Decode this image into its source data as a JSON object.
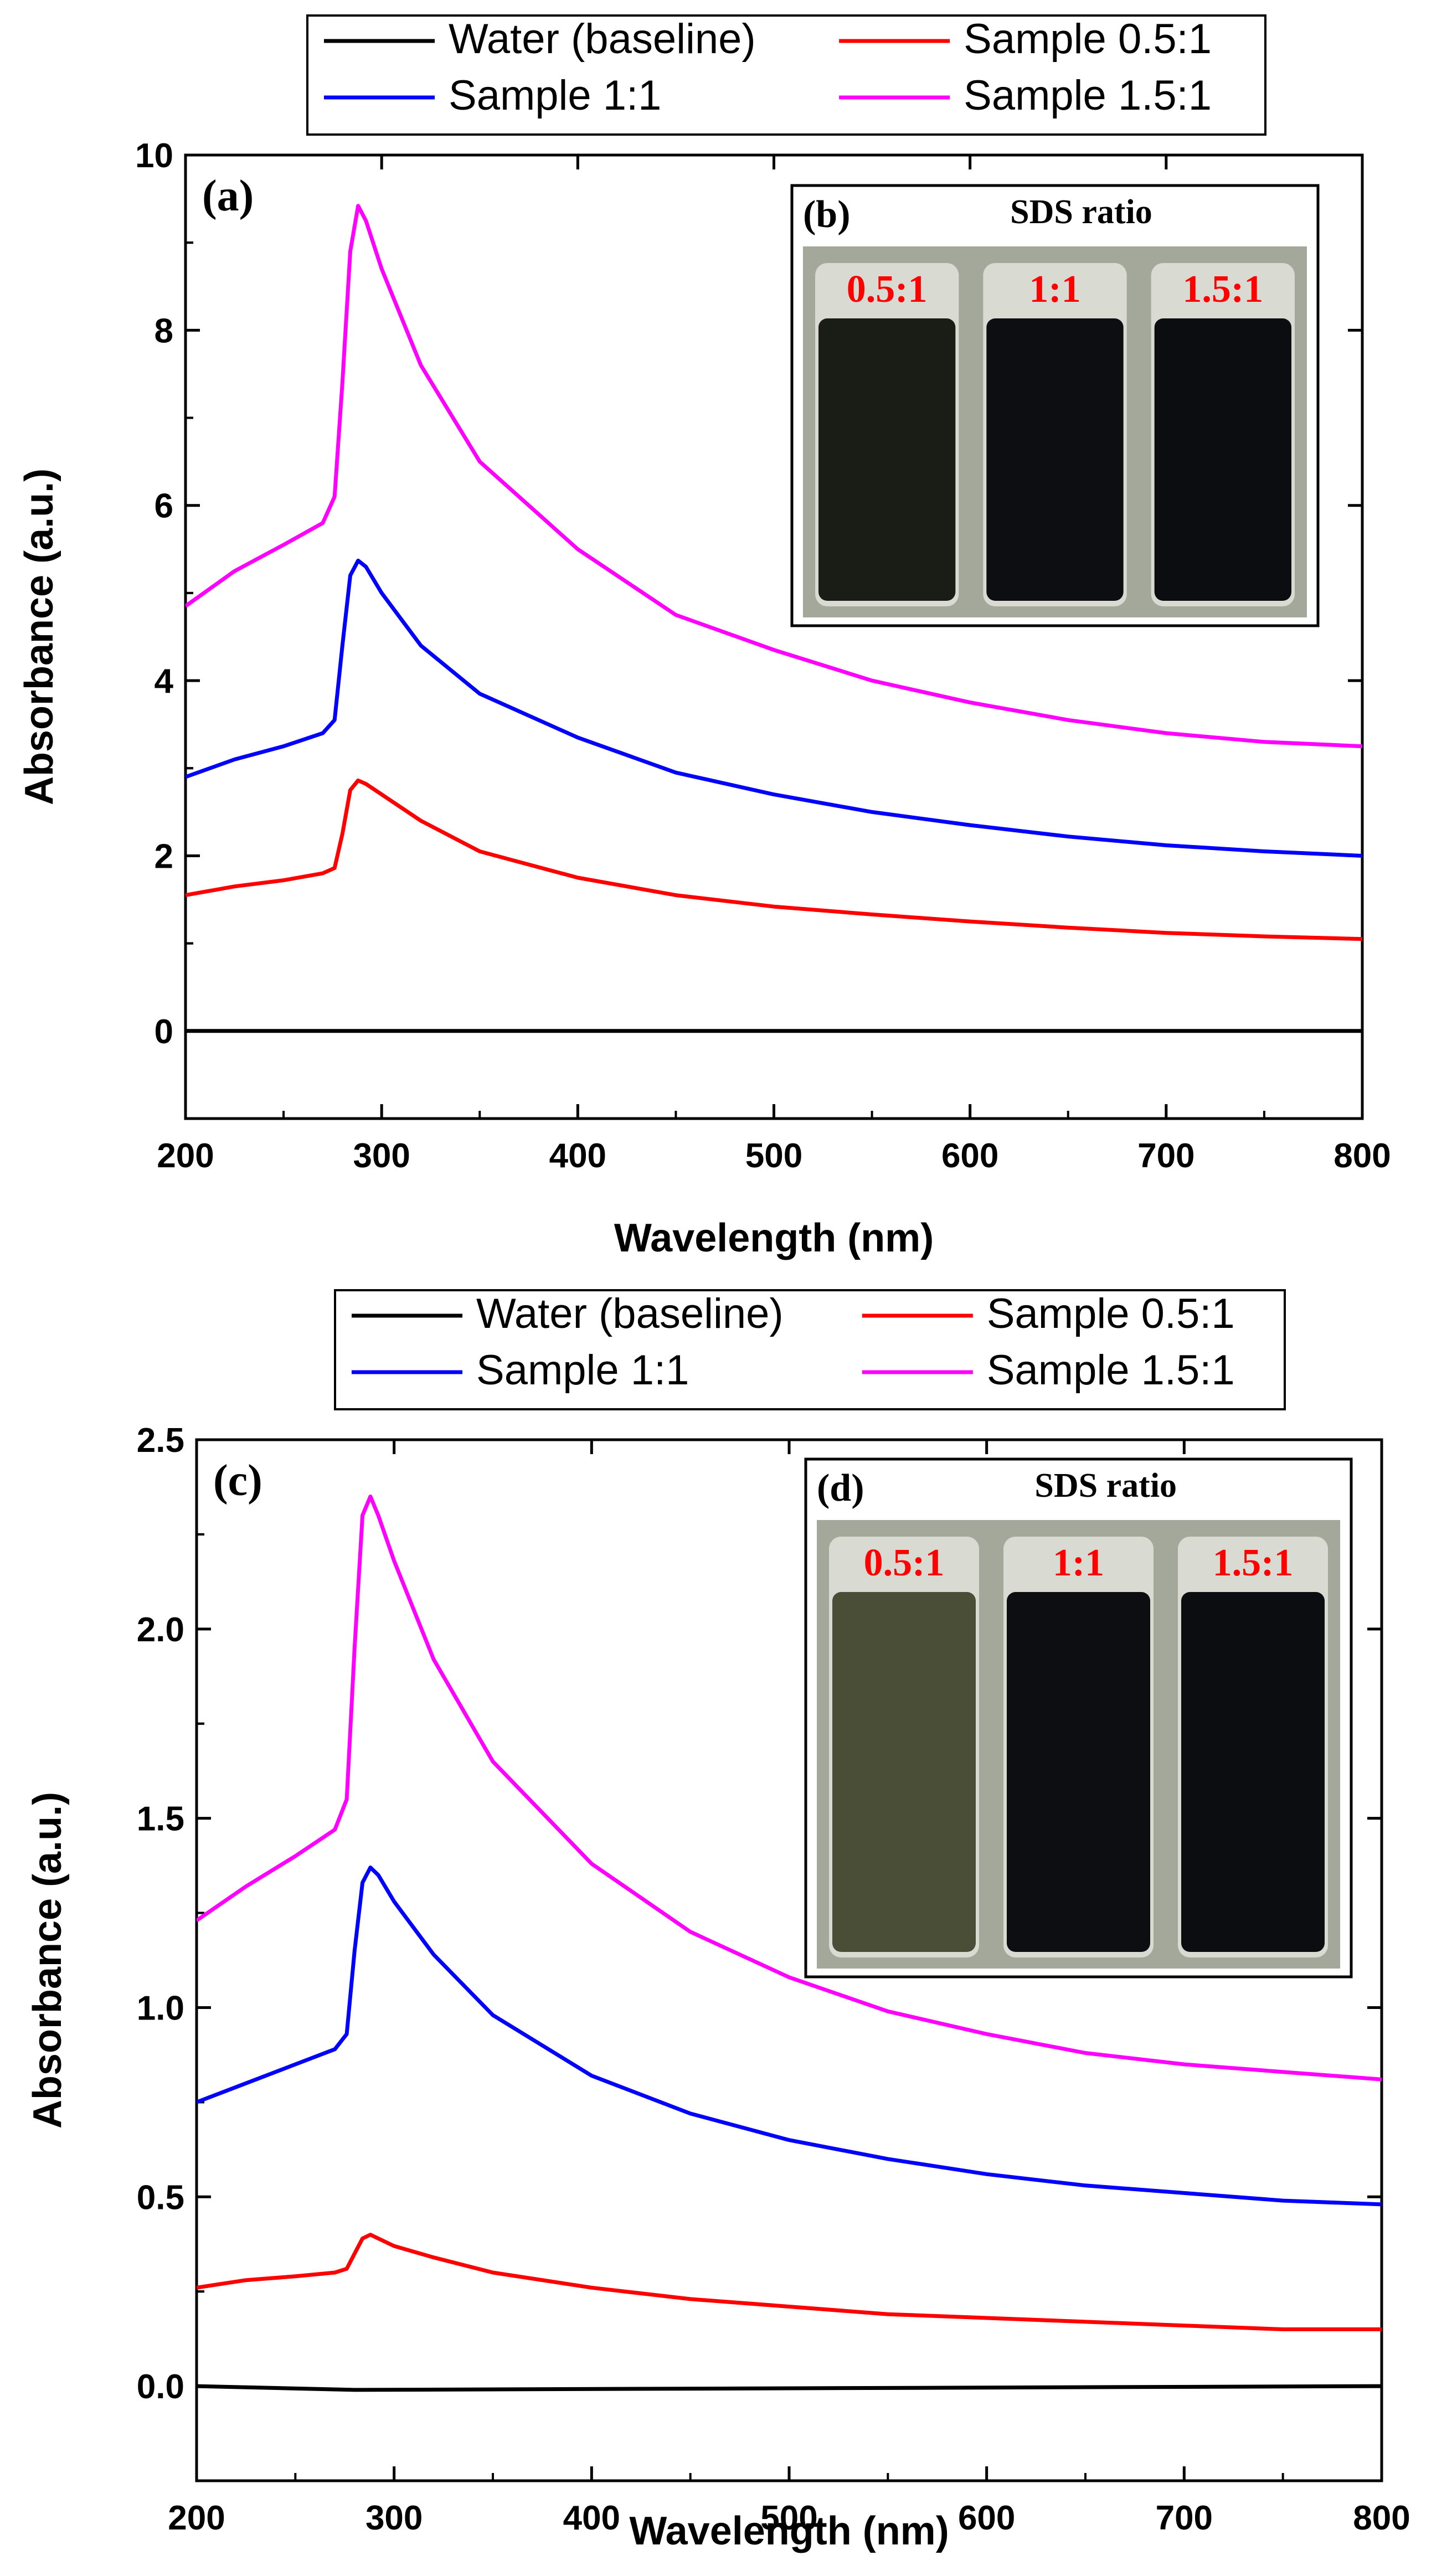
{
  "colors": {
    "water": "#000000",
    "s05": "#ff0000",
    "s1": "#0000ff",
    "s15": "#ff00ff",
    "panel_label_text": "#ff0000"
  },
  "chart_data": [
    {
      "type": "line",
      "panel_label": "(a)",
      "xlabel": "Wavelength (nm)",
      "ylabel": "Absorbance (a.u.)",
      "xlim": [
        200,
        800
      ],
      "ylim": [
        -1,
        10
      ],
      "xticks": [
        200,
        300,
        400,
        500,
        600,
        700,
        800
      ],
      "yticks": [
        0,
        2,
        4,
        6,
        8,
        10
      ],
      "legend": [
        {
          "key": "water",
          "label": "Water (baseline)"
        },
        {
          "key": "s05",
          "label": "Sample 0.5:1"
        },
        {
          "key": "s1",
          "label": "Sample 1:1"
        },
        {
          "key": "s15",
          "label": "Sample 1.5:1"
        }
      ],
      "series": [
        {
          "key": "water",
          "name": "Water (baseline)",
          "x": [
            200,
            800
          ],
          "y": [
            0,
            0
          ]
        },
        {
          "key": "s05",
          "name": "Sample 0.5:1",
          "x": [
            200,
            225,
            250,
            270,
            276,
            280,
            284,
            288,
            292,
            300,
            320,
            350,
            400,
            450,
            500,
            550,
            600,
            650,
            700,
            750,
            800
          ],
          "y": [
            1.55,
            1.65,
            1.72,
            1.8,
            1.86,
            2.25,
            2.75,
            2.86,
            2.82,
            2.7,
            2.4,
            2.05,
            1.75,
            1.55,
            1.42,
            1.33,
            1.25,
            1.18,
            1.12,
            1.08,
            1.05
          ]
        },
        {
          "key": "s1",
          "name": "Sample 1:1",
          "x": [
            200,
            225,
            250,
            270,
            276,
            280,
            284,
            288,
            292,
            300,
            320,
            350,
            400,
            450,
            500,
            550,
            600,
            650,
            700,
            750,
            800
          ],
          "y": [
            2.9,
            3.1,
            3.25,
            3.4,
            3.55,
            4.4,
            5.2,
            5.37,
            5.3,
            5.0,
            4.4,
            3.85,
            3.35,
            2.95,
            2.7,
            2.5,
            2.35,
            2.22,
            2.12,
            2.05,
            2.0
          ]
        },
        {
          "key": "s15",
          "name": "Sample 1.5:1",
          "x": [
            200,
            225,
            250,
            270,
            276,
            280,
            284,
            288,
            292,
            300,
            320,
            350,
            400,
            450,
            500,
            550,
            600,
            650,
            700,
            750,
            800
          ],
          "y": [
            4.85,
            5.25,
            5.55,
            5.8,
            6.1,
            7.4,
            8.9,
            9.42,
            9.25,
            8.7,
            7.6,
            6.5,
            5.5,
            4.75,
            4.35,
            4.0,
            3.75,
            3.55,
            3.4,
            3.3,
            3.25
          ]
        }
      ],
      "inset": {
        "label": "(b)",
        "title": "SDS ratio",
        "vials": [
          "0.5:1",
          "1:1",
          "1.5:1"
        ],
        "vial_colors": [
          "#1a1c16",
          "#0d0e12",
          "#0c0d11"
        ]
      }
    },
    {
      "type": "line",
      "panel_label": "(c)",
      "xlabel": "Wavelength (nm)",
      "ylabel": "Absorbance (a.u.)",
      "xlim": [
        200,
        800
      ],
      "ylim": [
        -0.25,
        2.5
      ],
      "xticks": [
        200,
        300,
        400,
        500,
        600,
        700,
        800
      ],
      "yticks": [
        "0.0",
        "0.5",
        "1.0",
        "1.5",
        "2.0",
        "2.5"
      ],
      "legend": [
        {
          "key": "water",
          "label": "Water (baseline)"
        },
        {
          "key": "s05",
          "label": "Sample 0.5:1"
        },
        {
          "key": "s1",
          "label": "Sample 1:1"
        },
        {
          "key": "s15",
          "label": "Sample 1.5:1"
        }
      ],
      "series": [
        {
          "key": "water",
          "name": "Water (baseline)",
          "x": [
            200,
            280,
            800
          ],
          "y": [
            0.0,
            -0.01,
            0.0
          ]
        },
        {
          "key": "s05",
          "name": "Sample 0.5:1",
          "x": [
            200,
            225,
            250,
            270,
            276,
            280,
            284,
            288,
            292,
            300,
            320,
            350,
            400,
            450,
            500,
            550,
            600,
            650,
            700,
            750,
            800
          ],
          "y": [
            0.26,
            0.28,
            0.29,
            0.3,
            0.31,
            0.35,
            0.39,
            0.4,
            0.39,
            0.37,
            0.34,
            0.3,
            0.26,
            0.23,
            0.21,
            0.19,
            0.18,
            0.17,
            0.16,
            0.15,
            0.15
          ]
        },
        {
          "key": "s1",
          "name": "Sample 1:1",
          "x": [
            200,
            225,
            250,
            270,
            276,
            280,
            284,
            288,
            292,
            300,
            320,
            350,
            400,
            450,
            500,
            550,
            600,
            650,
            700,
            750,
            800
          ],
          "y": [
            0.75,
            0.8,
            0.85,
            0.89,
            0.93,
            1.15,
            1.33,
            1.37,
            1.35,
            1.28,
            1.14,
            0.98,
            0.82,
            0.72,
            0.65,
            0.6,
            0.56,
            0.53,
            0.51,
            0.49,
            0.48
          ]
        },
        {
          "key": "s15",
          "name": "Sample 1.5:1",
          "x": [
            200,
            225,
            250,
            270,
            276,
            280,
            284,
            288,
            292,
            300,
            320,
            350,
            400,
            450,
            500,
            550,
            600,
            650,
            700,
            750,
            800
          ],
          "y": [
            1.23,
            1.32,
            1.4,
            1.47,
            1.55,
            1.95,
            2.3,
            2.35,
            2.3,
            2.18,
            1.92,
            1.65,
            1.38,
            1.2,
            1.08,
            0.99,
            0.93,
            0.88,
            0.85,
            0.83,
            0.81
          ]
        }
      ],
      "inset": {
        "label": "(d)",
        "title": "SDS ratio",
        "vials": [
          "0.5:1",
          "1:1",
          "1.5:1"
        ],
        "vial_colors": [
          "#4b4e36",
          "#0d0e12",
          "#0c0d11"
        ]
      }
    }
  ]
}
